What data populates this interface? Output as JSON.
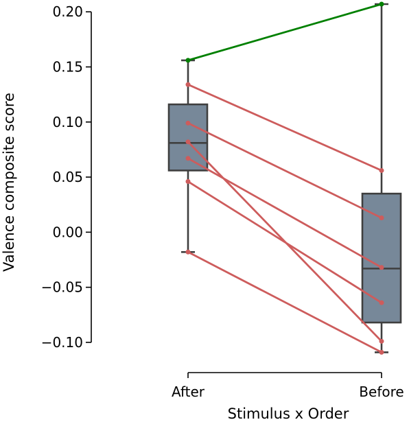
{
  "chart_data": {
    "type": "box",
    "xlabel": "Stimulus x Order",
    "ylabel": "Valence composite score",
    "categories": [
      "After",
      "Before"
    ],
    "ylim": [
      -0.11,
      0.207
    ],
    "yticks": [
      -0.1,
      -0.05,
      0.0,
      0.05,
      0.1,
      0.15,
      0.2
    ],
    "ytick_labels": [
      "−0.10",
      "−0.05",
      "0.00",
      "0.05",
      "0.10",
      "0.15",
      "0.20"
    ],
    "grid": false,
    "boxes": [
      {
        "category": "After",
        "whisker_low": -0.018,
        "q1": 0.056,
        "median": 0.081,
        "q3": 0.116,
        "whisker_high": 0.156
      },
      {
        "category": "Before",
        "whisker_low": -0.109,
        "q1": -0.082,
        "median": -0.033,
        "q3": 0.035,
        "whisker_high": 0.207
      }
    ],
    "pairs": [
      {
        "after": 0.156,
        "before": 0.207,
        "direction": "increase"
      },
      {
        "after": 0.134,
        "before": 0.056,
        "direction": "decrease"
      },
      {
        "after": 0.099,
        "before": 0.013,
        "direction": "decrease"
      },
      {
        "after": 0.082,
        "before": -0.099,
        "direction": "decrease"
      },
      {
        "after": 0.067,
        "before": -0.032,
        "direction": "decrease"
      },
      {
        "after": 0.046,
        "before": -0.064,
        "direction": "decrease"
      },
      {
        "after": -0.018,
        "before": -0.109,
        "direction": "decrease"
      }
    ],
    "colors": {
      "box_fill": "#778899",
      "box_edge": "#3f3f3f",
      "increase": "#008000",
      "decrease": "#cd5c5c",
      "axis": "#000000"
    }
  }
}
